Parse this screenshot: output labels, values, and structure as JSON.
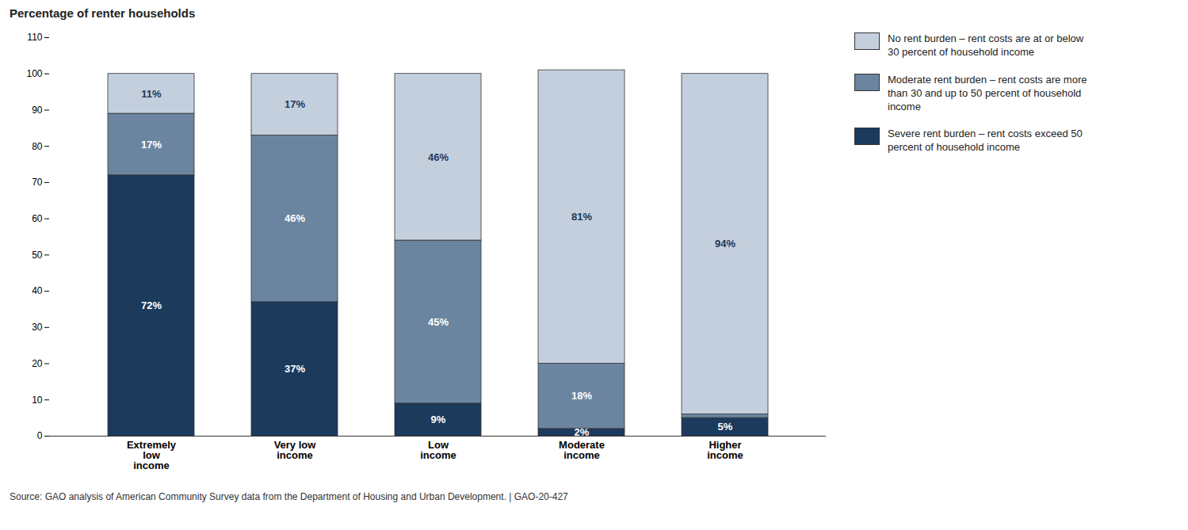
{
  "chart_data": {
    "type": "bar",
    "stacked": true,
    "title": "Percentage of renter households",
    "caption": "Source: GAO analysis of American Community Survey data from the Department of Housing and Urban Development.  |  GAO-20-427",
    "categories": [
      "Extremely\nlow\nincome",
      "Very low\nincome",
      "Low\nincome",
      "Moderate\nincome",
      "Higher\nincome"
    ],
    "series": [
      {
        "name": "Severe rent burden – rent costs exceed 50\npercent of household income",
        "color": "#1b3a5c",
        "values": [
          72,
          37,
          9,
          2,
          5
        ],
        "value_labels": [
          "72%",
          "37%",
          "9%",
          "2%",
          "5%"
        ]
      },
      {
        "name": "Moderate rent burden – rent costs are more\nthan 30 and up to 50 percent of household\nincome",
        "color": "#6b85a0",
        "values": [
          17,
          46,
          45,
          18,
          1
        ],
        "value_labels": [
          "17%",
          "46%",
          "45%",
          "18%",
          null
        ]
      },
      {
        "name": "No rent burden – rent costs are at or below\n30 percent of household income",
        "color": "#c4cfde",
        "values": [
          11,
          17,
          46,
          81,
          94
        ],
        "value_labels": [
          "11%",
          "17%",
          "46%",
          "81%",
          "94%"
        ]
      }
    ],
    "ylim": [
      0,
      110
    ],
    "yticks": [
      0,
      10,
      20,
      30,
      40,
      50,
      60,
      70,
      80,
      90,
      100,
      110
    ],
    "grid": false,
    "legend": "right",
    "data_labels": true
  }
}
